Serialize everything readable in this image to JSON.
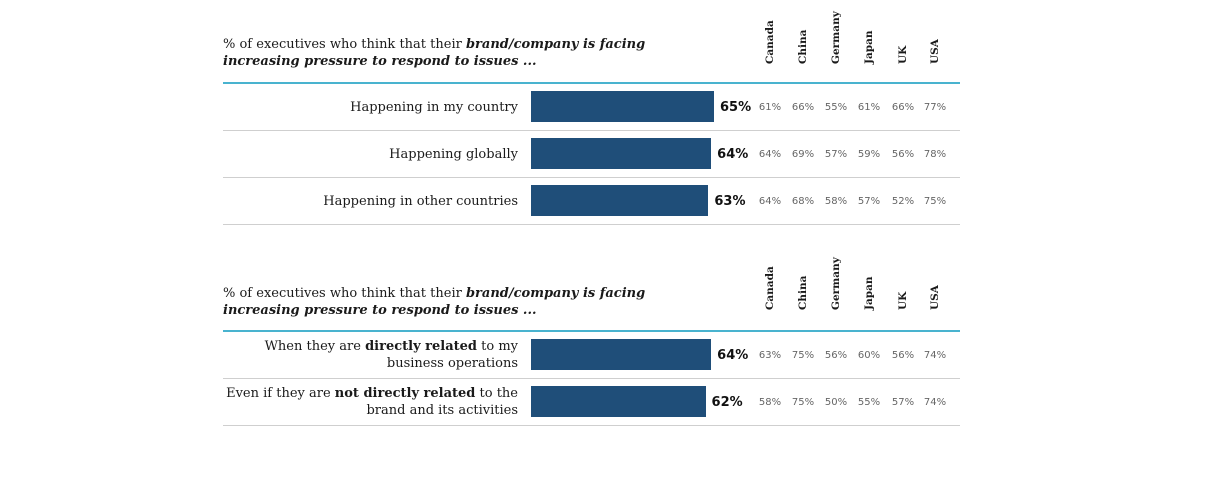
{
  "chart_data": [
    {
      "type": "bar",
      "title_prefix": "% of executives who think that their ",
      "title_emphasis_1": "brand/company is facing",
      "title_emphasis_2": "increasing pressure to respond to issues ...",
      "countries": [
        "Canada",
        "China",
        "Germany",
        "Japan",
        "UK",
        "USA"
      ],
      "rows": [
        {
          "label": "Happening in my country",
          "value": 65,
          "value_label": "65%",
          "country_values": [
            "61%",
            "66%",
            "55%",
            "61%",
            "66%",
            "77%"
          ]
        },
        {
          "label": "Happening globally",
          "value": 64,
          "value_label": "64%",
          "country_values": [
            "64%",
            "69%",
            "57%",
            "59%",
            "56%",
            "78%"
          ]
        },
        {
          "label": "Happening in other countries",
          "value": 63,
          "value_label": "63%",
          "country_values": [
            "64%",
            "68%",
            "58%",
            "57%",
            "52%",
            "75%"
          ]
        }
      ],
      "bar_color": "#1f4e79",
      "rule_color": "#49b3cf"
    },
    {
      "type": "bar",
      "title_prefix": "% of executives who think that their ",
      "title_emphasis_1": "brand/company is facing",
      "title_emphasis_2": "increasing pressure to respond to issues ...",
      "countries": [
        "Canada",
        "China",
        "Germany",
        "Japan",
        "UK",
        "USA"
      ],
      "rows": [
        {
          "label_pre": "When they are ",
          "label_bold": "directly related",
          "label_post": " to my business operations",
          "value": 64,
          "value_label": "64%",
          "country_values": [
            "63%",
            "75%",
            "56%",
            "60%",
            "56%",
            "74%"
          ]
        },
        {
          "label_pre": "Even if they are ",
          "label_bold": "not directly related",
          "label_post": " to the brand and its activities",
          "value": 62,
          "value_label": "62%",
          "country_values": [
            "58%",
            "75%",
            "50%",
            "55%",
            "57%",
            "74%"
          ]
        }
      ],
      "bar_color": "#1f4e79",
      "rule_color": "#49b3cf"
    }
  ]
}
